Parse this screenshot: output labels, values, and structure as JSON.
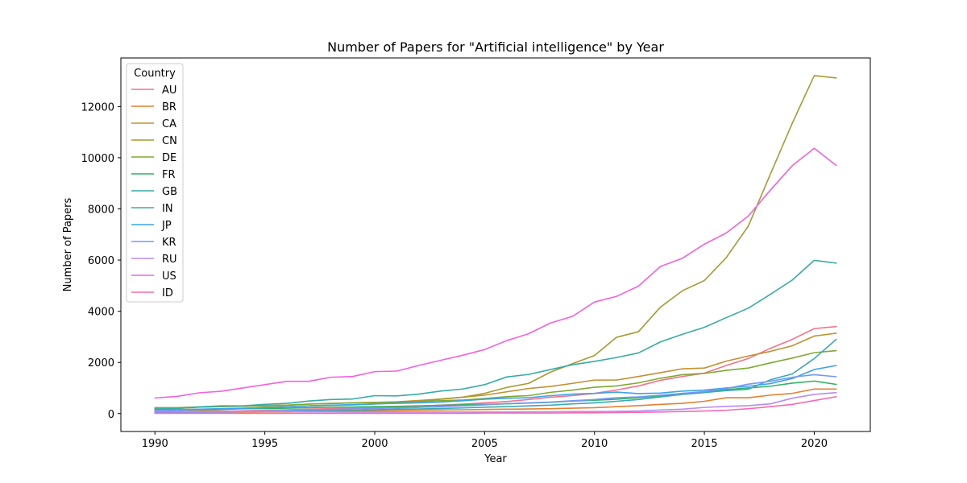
{
  "chart_data": {
    "type": "line",
    "title": "Number of Papers for \"Artificial intelligence\" by Year",
    "xlabel": "Year",
    "ylabel": "Number of Papers",
    "xlim": [
      1988.45,
      1992.0
    ],
    "ylim": [
      -700,
      13900
    ],
    "xticks": [
      "1990",
      "1995",
      "2000",
      "2005",
      "2010",
      "2015",
      "2020"
    ],
    "yticks": [
      "0",
      "2000",
      "4000",
      "6000",
      "8000",
      "10000",
      "12000"
    ],
    "legend": {
      "title": "Country",
      "placement": "top-left"
    },
    "grid": false,
    "x": [
      1990,
      1991,
      1992,
      1993,
      1994,
      1995,
      1996,
      1997,
      1998,
      1999,
      2000,
      2001,
      2002,
      2003,
      2004,
      2005,
      2006,
      2007,
      2008,
      2009,
      2010,
      2011,
      2012,
      2013,
      2014,
      2015,
      2016,
      2017,
      2018,
      2019,
      2020,
      2021
    ],
    "series": [
      {
        "name": "AU",
        "color": "#f77189",
        "values": [
          60,
          60,
          80,
          90,
          110,
          130,
          150,
          170,
          190,
          210,
          230,
          260,
          290,
          330,
          370,
          420,
          470,
          550,
          640,
          700,
          790,
          920,
          1080,
          1300,
          1450,
          1580,
          1880,
          2150,
          2550,
          2900,
          3320,
          3400
        ]
      },
      {
        "name": "BR",
        "color": "#e1822f",
        "values": [
          40,
          40,
          50,
          50,
          60,
          70,
          70,
          80,
          90,
          100,
          110,
          120,
          130,
          140,
          150,
          160,
          170,
          180,
          190,
          210,
          230,
          270,
          310,
          360,
          400,
          480,
          620,
          620,
          720,
          790,
          960,
          960
        ]
      },
      {
        "name": "CA",
        "color": "#c2902f",
        "values": [
          200,
          200,
          250,
          270,
          290,
          310,
          330,
          370,
          390,
          420,
          430,
          460,
          510,
          570,
          640,
          720,
          850,
          980,
          1060,
          1180,
          1310,
          1310,
          1450,
          1600,
          1750,
          1780,
          2050,
          2250,
          2430,
          2650,
          3030,
          3140
        ]
      },
      {
        "name": "CN",
        "color": "#a59b31",
        "values": [
          80,
          90,
          120,
          150,
          200,
          250,
          270,
          300,
          320,
          340,
          370,
          420,
          480,
          560,
          640,
          790,
          1020,
          1180,
          1620,
          1950,
          2270,
          2980,
          3200,
          4160,
          4800,
          5200,
          6100,
          7330,
          9350,
          11350,
          13210,
          13120
        ]
      },
      {
        "name": "DE",
        "color": "#7eaa31",
        "values": [
          230,
          230,
          260,
          280,
          290,
          310,
          330,
          370,
          400,
          420,
          440,
          450,
          470,
          500,
          530,
          590,
          660,
          700,
          830,
          920,
          1030,
          1080,
          1200,
          1380,
          1520,
          1570,
          1690,
          1780,
          1980,
          2170,
          2380,
          2460
        ]
      },
      {
        "name": "FR",
        "color": "#32b165",
        "values": [
          150,
          150,
          170,
          180,
          190,
          200,
          210,
          230,
          250,
          260,
          270,
          280,
          300,
          320,
          340,
          360,
          380,
          410,
          440,
          490,
          520,
          560,
          620,
          690,
          790,
          830,
          940,
          1000,
          1070,
          1190,
          1270,
          1140
        ]
      },
      {
        "name": "GB",
        "color": "#35aca5",
        "values": [
          180,
          200,
          260,
          300,
          300,
          360,
          400,
          490,
          550,
          570,
          700,
          690,
          760,
          880,
          960,
          1130,
          1430,
          1530,
          1720,
          1910,
          2040,
          2190,
          2370,
          2800,
          3100,
          3370,
          3750,
          4120,
          4660,
          5220,
          5990,
          5880
        ]
      },
      {
        "name": "IN",
        "color": "#38a9b8",
        "values": [
          40,
          50,
          60,
          70,
          80,
          90,
          100,
          110,
          120,
          130,
          150,
          170,
          180,
          200,
          220,
          250,
          270,
          300,
          330,
          380,
          420,
          480,
          550,
          650,
          750,
          820,
          900,
          950,
          1320,
          1550,
          2150,
          2900
        ]
      },
      {
        "name": "JP",
        "color": "#3ba3ec",
        "values": [
          130,
          140,
          170,
          190,
          210,
          230,
          260,
          300,
          330,
          350,
          380,
          400,
          420,
          450,
          500,
          560,
          600,
          620,
          700,
          760,
          790,
          840,
          780,
          800,
          880,
          920,
          1000,
          1070,
          1170,
          1370,
          1720,
          1880
        ]
      },
      {
        "name": "KR",
        "color": "#7698f3",
        "values": [
          30,
          40,
          50,
          60,
          80,
          100,
          120,
          140,
          160,
          180,
          200,
          220,
          240,
          270,
          300,
          340,
          390,
          420,
          450,
          500,
          550,
          620,
          650,
          720,
          790,
          860,
          980,
          1150,
          1260,
          1420,
          1520,
          1440
        ]
      },
      {
        "name": "RU",
        "color": "#b88bf3",
        "values": [
          100,
          100,
          90,
          90,
          80,
          80,
          80,
          70,
          70,
          60,
          60,
          60,
          60,
          60,
          60,
          60,
          60,
          70,
          70,
          80,
          80,
          90,
          100,
          140,
          170,
          240,
          280,
          310,
          380,
          600,
          750,
          820
        ]
      },
      {
        "name": "US",
        "color": "#f461dd",
        "values": [
          610,
          670,
          810,
          870,
          1000,
          1130,
          1260,
          1260,
          1420,
          1450,
          1640,
          1660,
          1880,
          2080,
          2280,
          2500,
          2850,
          3120,
          3540,
          3800,
          4360,
          4580,
          4980,
          5750,
          6070,
          6620,
          7060,
          7720,
          8730,
          9690,
          10370,
          9700
        ]
      },
      {
        "name": "ID",
        "color": "#f66bb2",
        "values": [
          10,
          10,
          10,
          10,
          10,
          10,
          10,
          10,
          10,
          10,
          10,
          10,
          10,
          10,
          10,
          20,
          20,
          20,
          20,
          30,
          30,
          40,
          50,
          60,
          80,
          100,
          130,
          190,
          270,
          360,
          510,
          660
        ]
      }
    ]
  }
}
